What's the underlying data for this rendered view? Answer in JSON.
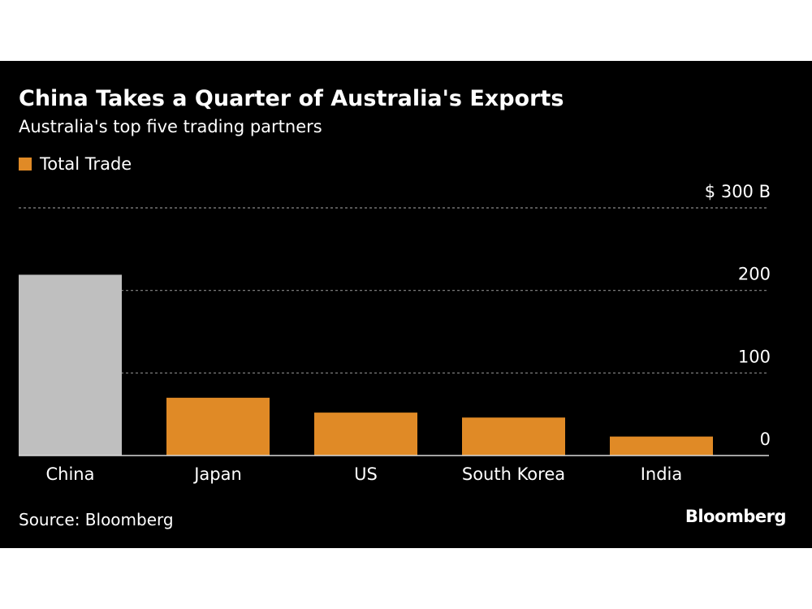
{
  "header": {
    "title": "China Takes a Quarter of Australia's Exports",
    "subtitle": "Australia's top five trading partners"
  },
  "legend": {
    "label": "Total Trade",
    "color": "#E08A26"
  },
  "footer": {
    "source": "Source: Bloomberg",
    "brand": "Bloomberg"
  },
  "colors": {
    "background": "#000000",
    "highlight": "#BFBFBF",
    "bar": "#E08A26",
    "gridline": "#8A8A8A",
    "baseline": "#D9D9D9",
    "text": "#FFFFFF"
  },
  "chart_data": {
    "type": "bar",
    "title": "China Takes a Quarter of Australia's Exports",
    "subtitle": "Australia's top five trading partners",
    "categories": [
      "China",
      "Japan",
      "US",
      "South Korea",
      "India"
    ],
    "series": [
      {
        "name": "Total Trade",
        "values": [
          219,
          70,
          52,
          46,
          23
        ]
      }
    ],
    "highlighted_category": "China",
    "ylim": [
      0,
      300
    ],
    "yticks": [
      0,
      100,
      200,
      300
    ],
    "ytick_labels": [
      "0",
      "100",
      "200",
      "$ 300 B"
    ],
    "grid": true,
    "y_axis_side": "right",
    "legend_position": "top-left"
  }
}
